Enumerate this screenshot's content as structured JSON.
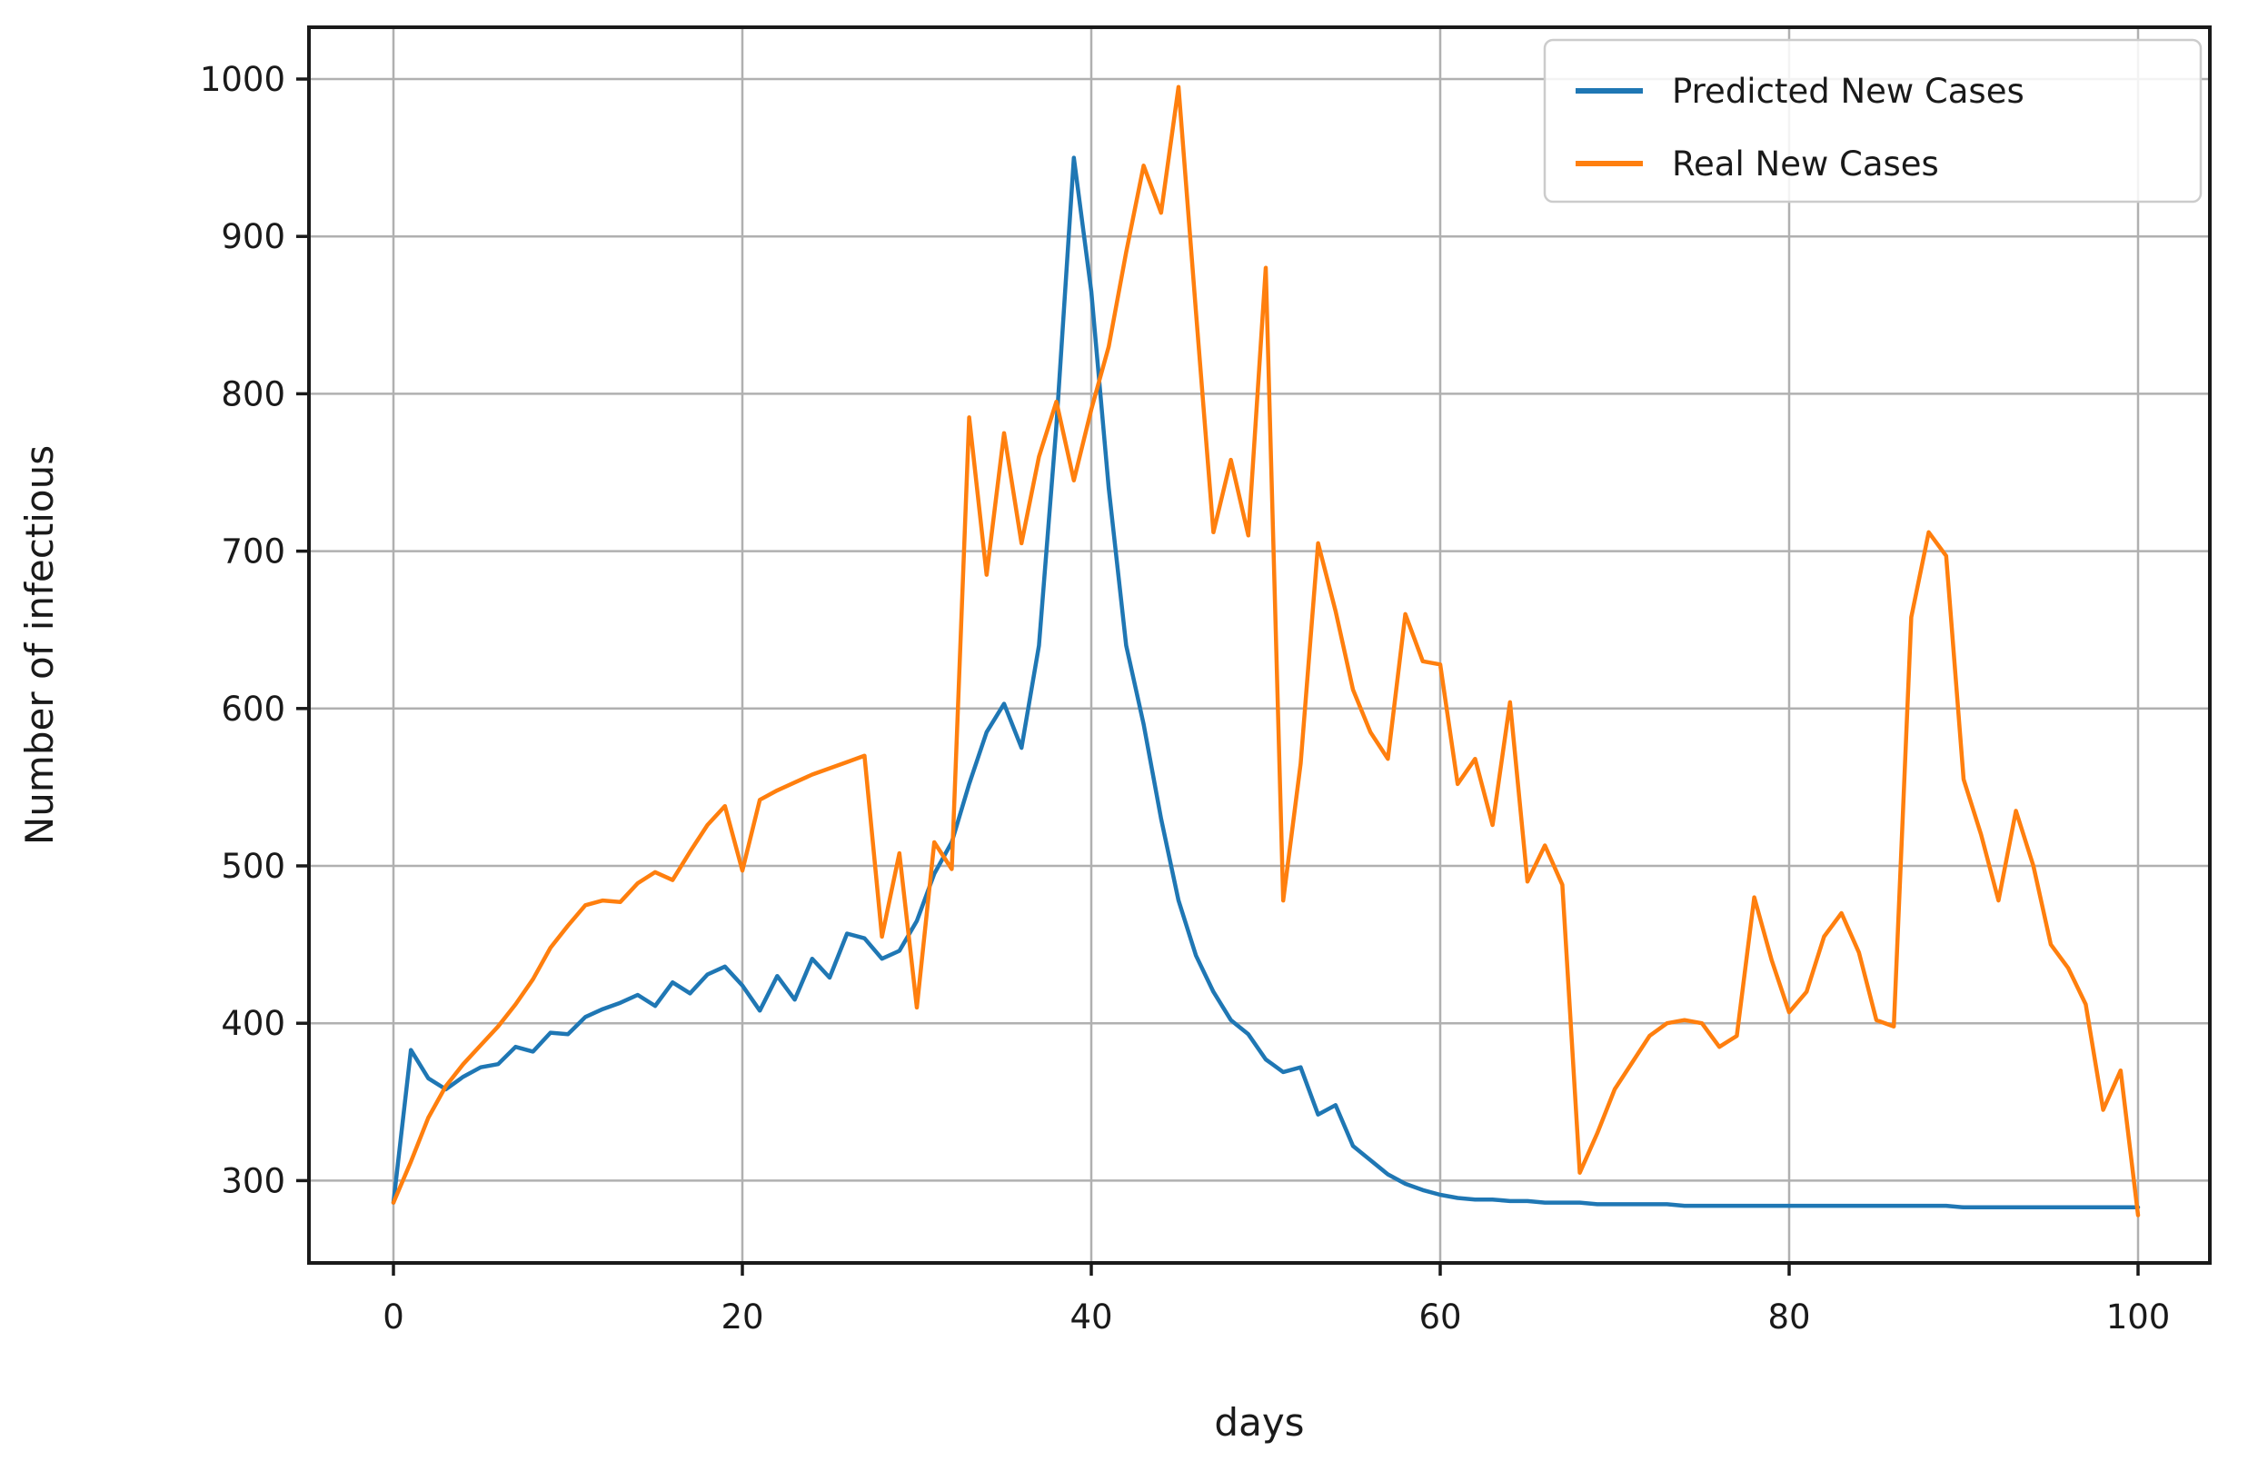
{
  "chart_data": {
    "type": "line",
    "title": "",
    "xlabel": "days",
    "ylabel": "Number of infectious",
    "x_ticks": [
      0,
      20,
      40,
      60,
      80,
      100
    ],
    "y_ticks": [
      300,
      400,
      500,
      600,
      700,
      800,
      900,
      1000
    ],
    "xlim": [
      -4.8,
      104.1
    ],
    "ylim": [
      248,
      1033
    ],
    "grid": true,
    "legend_position": "upper right",
    "x_step": 1,
    "series": [
      {
        "name": "Predicted New Cases",
        "color": "#1f77b4",
        "values": [
          286,
          383,
          365,
          358,
          366,
          372,
          374,
          385,
          382,
          394,
          393,
          404,
          409,
          413,
          418,
          411,
          426,
          419,
          431,
          436,
          424,
          408,
          430,
          415,
          441,
          429,
          457,
          454,
          441,
          446,
          465,
          495,
          515,
          552,
          585,
          603,
          575,
          640,
          780,
          950,
          865,
          740,
          640,
          590,
          530,
          478,
          443,
          420,
          402,
          393,
          377,
          369,
          372,
          342,
          348,
          322,
          313,
          304,
          298,
          294,
          291,
          289,
          288,
          288,
          287,
          287,
          286,
          286,
          286,
          285,
          285,
          285,
          285,
          285,
          284,
          284,
          284,
          284,
          284,
          284,
          284,
          284,
          284,
          284,
          284,
          284,
          284,
          284,
          284,
          284,
          283,
          283,
          283,
          283,
          283,
          283,
          283,
          283,
          283,
          283,
          283
        ]
      },
      {
        "name": "Real New Cases",
        "color": "#ff7f0e",
        "values": [
          286,
          312,
          340,
          360,
          374,
          386,
          398,
          412,
          428,
          448,
          462,
          475,
          478,
          477,
          489,
          496,
          491,
          509,
          526,
          538,
          497,
          542,
          548,
          553,
          558,
          562,
          566,
          570,
          455,
          508,
          410,
          515,
          498,
          785,
          685,
          775,
          705,
          760,
          795,
          745,
          790,
          830,
          890,
          945,
          915,
          995,
          852,
          712,
          758,
          710,
          880,
          478,
          565,
          705,
          662,
          612,
          585,
          568,
          660,
          630,
          628,
          552,
          568,
          526,
          604,
          490,
          513,
          488,
          305,
          330,
          358,
          375,
          392,
          400,
          402,
          400,
          385,
          392,
          480,
          440,
          407,
          420,
          455,
          470,
          445,
          402,
          398,
          658,
          712,
          697,
          555,
          520,
          478,
          535,
          500,
          450,
          435,
          412,
          345,
          370,
          278
        ]
      }
    ]
  },
  "legend": {
    "items": [
      {
        "label": "Predicted New Cases",
        "color": "#1f77b4"
      },
      {
        "label": "Real New Cases",
        "color": "#ff7f0e"
      }
    ]
  },
  "axes": {
    "x_label": "days",
    "y_label": "Number of infectious"
  }
}
